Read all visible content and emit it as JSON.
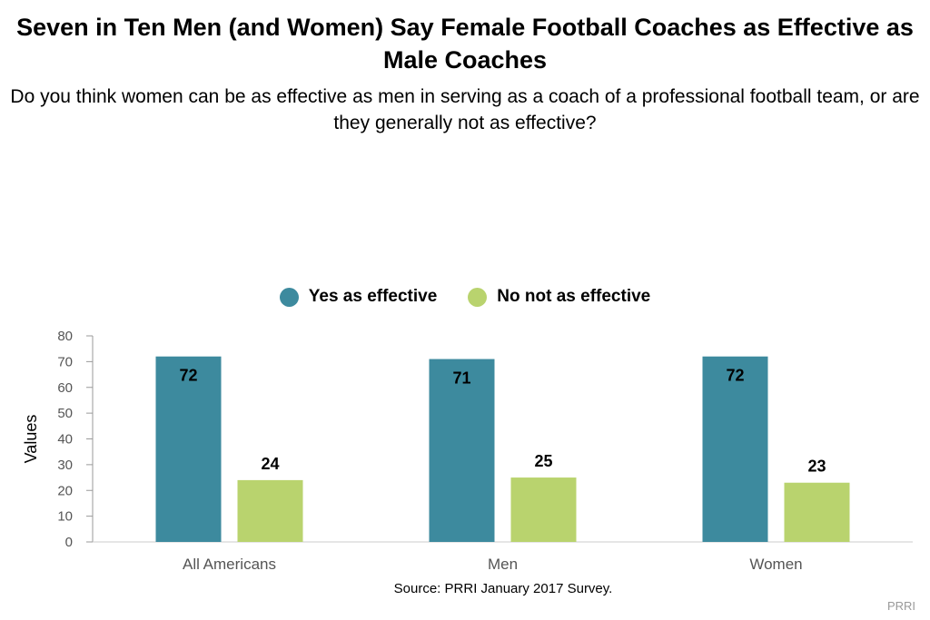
{
  "title": "Seven in Ten Men (and Women) Say Female Football Coaches as Effective as Male Coaches",
  "subtitle": "Do you think women can be as effective as men in serving as a coach of a professional football team, or are they generally not as effective?",
  "source": "Source: PRRI January 2017 Survey.",
  "credit": "PRRI",
  "colors": {
    "yes": "#3d8a9e",
    "no": "#b9d36e"
  },
  "chart_data": {
    "type": "bar",
    "categories": [
      "All Americans",
      "Men",
      "Women"
    ],
    "series": [
      {
        "name": "Yes as effective",
        "values": [
          72,
          71,
          72
        ]
      },
      {
        "name": "No not as effective",
        "values": [
          24,
          25,
          23
        ]
      }
    ],
    "ylabel": "Values",
    "ylim": [
      0,
      80
    ],
    "yticks": [
      0,
      10,
      20,
      30,
      40,
      50,
      60,
      70,
      80
    ],
    "legend": "top-center",
    "grid": false
  }
}
